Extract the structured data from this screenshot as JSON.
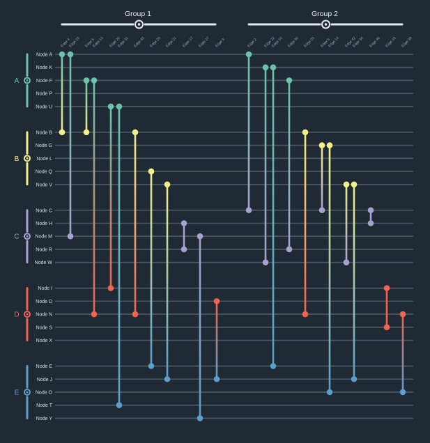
{
  "groups": [
    {
      "id": "g1",
      "title": "Group 1"
    },
    {
      "id": "g2",
      "title": "Group 2"
    }
  ],
  "node_groups": [
    {
      "letter": "A",
      "color": "#6cc3a9",
      "nodes": [
        "Node A",
        "Node K",
        "Node F",
        "Node P",
        "Node U"
      ]
    },
    {
      "letter": "B",
      "color": "#f3ef8b",
      "nodes": [
        "Node B",
        "Node G",
        "Node L",
        "Node Q",
        "Node V"
      ]
    },
    {
      "letter": "C",
      "color": "#a7a2cf",
      "nodes": [
        "Node C",
        "Node H",
        "Node M",
        "Node R",
        "Node W"
      ]
    },
    {
      "letter": "D",
      "color": "#f0634f",
      "nodes": [
        "Node I",
        "Node D",
        "Node N",
        "Node S",
        "Node X"
      ]
    },
    {
      "letter": "E",
      "color": "#5b9ec9",
      "nodes": [
        "Node E",
        "Node J",
        "Node O",
        "Node T",
        "Node Y"
      ]
    }
  ],
  "edges": [
    {
      "label": "Edge 4",
      "group": 0,
      "from": "Node A",
      "to": "Node B"
    },
    {
      "label": "Edge 15",
      "group": 0,
      "from": "Node A",
      "to": "Node M"
    },
    {
      "label": "Edge 5",
      "group": 0,
      "from": "Node F",
      "to": "Node B"
    },
    {
      "label": "Edge 13",
      "group": 0,
      "from": "Node F",
      "to": "Node N"
    },
    {
      "label": "Edge 20",
      "group": 0,
      "from": "Node U",
      "to": "Node I"
    },
    {
      "label": "Edge 31",
      "group": 0,
      "from": "Node U",
      "to": "Node T"
    },
    {
      "label": "Edge 45",
      "group": 0,
      "from": "Node B",
      "to": "Node N"
    },
    {
      "label": "Edge 29",
      "group": 0,
      "from": "Node Q",
      "to": "Node E"
    },
    {
      "label": "Edge 21",
      "group": 0,
      "from": "Node V",
      "to": "Node J"
    },
    {
      "label": "Edge 17",
      "group": 0,
      "from": "Node H",
      "to": "Node R"
    },
    {
      "label": "Edge 27",
      "group": 0,
      "from": "Node M",
      "to": "Node Y"
    },
    {
      "label": "Edge 9",
      "group": 0,
      "from": "Node D",
      "to": "Node J"
    },
    {
      "label": "Edge 2",
      "group": 1,
      "from": "Node A",
      "to": "Node C"
    },
    {
      "label": "Edge 22",
      "group": 1,
      "from": "Node K",
      "to": "Node W"
    },
    {
      "label": "Edge 10",
      "group": 1,
      "from": "Node K",
      "to": "Node E"
    },
    {
      "label": "Edge 30",
      "group": 1,
      "from": "Node F",
      "to": "Node R"
    },
    {
      "label": "Edge 25",
      "group": 1,
      "from": "Node B",
      "to": "Node N"
    },
    {
      "label": "Edge 6",
      "group": 1,
      "from": "Node G",
      "to": "Node C"
    },
    {
      "label": "Edge 14",
      "group": 1,
      "from": "Node G",
      "to": "Node O"
    },
    {
      "label": "Edge 42",
      "group": 1,
      "from": "Node V",
      "to": "Node W"
    },
    {
      "label": "Edge 34",
      "group": 1,
      "from": "Node V",
      "to": "Node J"
    },
    {
      "label": "Edge 46",
      "group": 1,
      "from": "Node C",
      "to": "Node H"
    },
    {
      "label": "Edge 18",
      "group": 1,
      "from": "Node I",
      "to": "Node S"
    },
    {
      "label": "Edge 38",
      "group": 1,
      "from": "Node N",
      "to": "Node O"
    }
  ]
}
